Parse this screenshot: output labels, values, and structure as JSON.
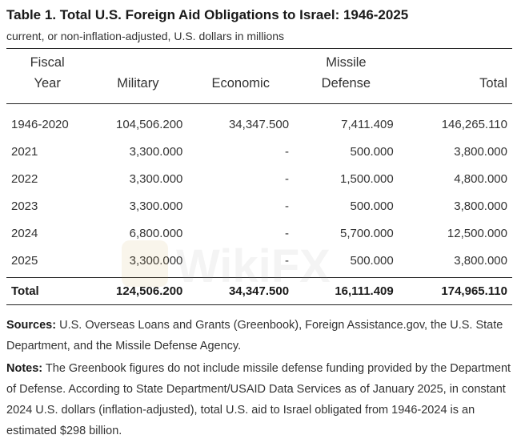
{
  "title": "Table 1. Total U.S. Foreign Aid Obligations to Israel: 1946-2025",
  "subtitle": "current, or non-inflation-adjusted, U.S. dollars in millions",
  "table": {
    "headers": {
      "year_line1": "Fiscal",
      "year_line2": "Year",
      "military": "Military",
      "economic": "Economic",
      "missile_line1": "Missile",
      "missile_line2": "Defense",
      "total": "Total"
    },
    "rows": [
      {
        "year": "1946-2020",
        "military": "104,506.200",
        "economic": "34,347.500",
        "missile": "7,411.409",
        "total": "146,265.110"
      },
      {
        "year": "2021",
        "military": "3,300.000",
        "economic": "-",
        "missile": "500.000",
        "total": "3,800.000"
      },
      {
        "year": "2022",
        "military": "3,300.000",
        "economic": "-",
        "missile": "1,500.000",
        "total": "4,800.000"
      },
      {
        "year": "2023",
        "military": "3,300.000",
        "economic": "-",
        "missile": "500.000",
        "total": "3,800.000"
      },
      {
        "year": "2024",
        "military": "6,800.000",
        "economic": "-",
        "missile": "5,700.000",
        "total": "12,500.000"
      },
      {
        "year": "2025",
        "military": "3,300.000",
        "economic": "-",
        "missile": "500.000",
        "total": "3,800.000"
      }
    ],
    "total_row": {
      "label": "Total",
      "military": "124,506.200",
      "economic": "34,347.500",
      "missile": "16,111.409",
      "total": "174,965.110"
    }
  },
  "sources": {
    "label": "Sources:",
    "text": " U.S. Overseas Loans and Grants (Greenbook), Foreign Assistance.gov, the U.S. State Department, and the Missile Defense Agency."
  },
  "notes": {
    "label": "Notes:",
    "text": " The Greenbook figures do not include missile defense funding provided by the Department of Defense. According to State Department/USAID Data Services as of January 2025, in constant 2024 U.S. dollars (inflation-adjusted), total U.S. aid to Israel obligated from 1946-2024 is an estimated $298 billion."
  },
  "watermark": {
    "text": "WikiFX",
    "color": "#c9a24a"
  }
}
